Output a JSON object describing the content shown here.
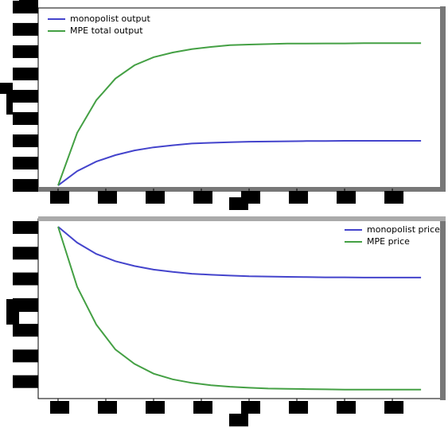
{
  "chart_data": [
    {
      "type": "line",
      "legend": "upper left",
      "x": [
        0,
        1,
        2,
        3,
        4,
        5,
        6,
        7,
        8,
        9,
        10,
        11,
        12,
        13,
        14,
        15,
        16,
        17,
        18,
        19
      ],
      "series": [
        {
          "name": "monopolist output",
          "color": "#4444cc",
          "values": [
            0,
            0.64,
            1.07,
            1.36,
            1.57,
            1.71,
            1.8,
            1.88,
            1.91,
            1.94,
            1.96,
            1.97,
            1.98,
            1.99,
            1.99,
            2.0,
            2.0,
            2.0,
            2.0,
            2.0
          ]
        },
        {
          "name": "MPE total output",
          "color": "#44a044",
          "values": [
            0,
            2.36,
            3.82,
            4.79,
            5.39,
            5.75,
            5.96,
            6.11,
            6.21,
            6.29,
            6.32,
            6.34,
            6.36,
            6.36,
            6.37,
            6.37,
            6.38,
            6.38,
            6.38,
            6.38
          ]
        }
      ],
      "xlim": [
        -1.04,
        20.08
      ],
      "xticks": [
        0,
        2.5,
        5,
        7.5,
        10,
        12.5,
        15,
        17.5
      ],
      "ylim": [
        -0.14,
        7.96
      ],
      "yticks": [
        0,
        1,
        2,
        3,
        4,
        5,
        6,
        7,
        8
      ]
    },
    {
      "type": "line",
      "legend": "upper right",
      "x": [
        0,
        1,
        2,
        3,
        4,
        5,
        6,
        7,
        8,
        9,
        10,
        11,
        12,
        13,
        14,
        15,
        16,
        17,
        18,
        19
      ],
      "series": [
        {
          "name": "monopolist price",
          "color": "#4444cc",
          "values": [
            6.03,
            5.41,
            4.97,
            4.69,
            4.5,
            4.36,
            4.27,
            4.2,
            4.16,
            4.13,
            4.1,
            4.09,
            4.08,
            4.07,
            4.06,
            4.06,
            4.05,
            4.05,
            4.05,
            4.05
          ]
        },
        {
          "name": "MPE price",
          "color": "#44a044",
          "values": [
            6.03,
            3.69,
            2.22,
            1.25,
            0.69,
            0.31,
            0.09,
            -0.05,
            -0.14,
            -0.2,
            -0.24,
            -0.27,
            -0.28,
            -0.29,
            -0.3,
            -0.31,
            -0.31,
            -0.31,
            -0.31,
            -0.31
          ]
        }
      ],
      "xlim": [
        -1.04,
        20.08
      ],
      "xticks": [
        0,
        2.5,
        5,
        7.5,
        10,
        12.5,
        15,
        17.5
      ],
      "ylim": [
        -0.66,
        6.34
      ],
      "yticks": [
        0,
        1,
        2,
        3,
        4,
        5,
        6
      ]
    }
  ]
}
